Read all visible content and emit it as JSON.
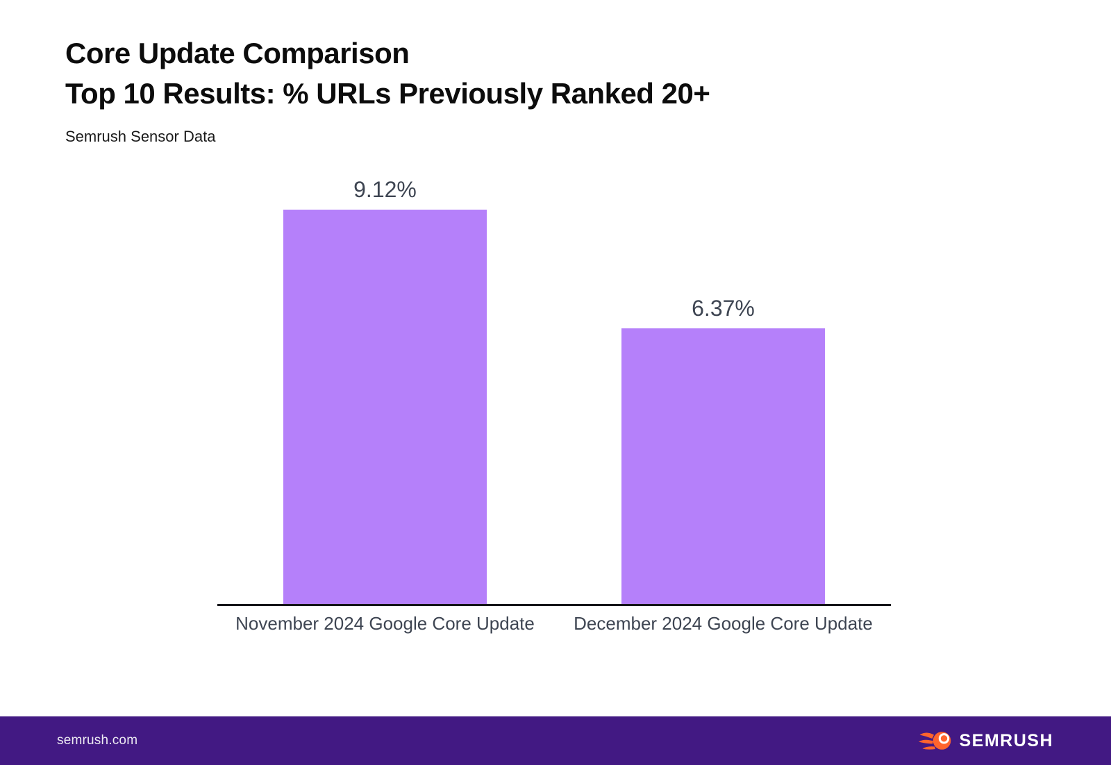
{
  "header": {
    "title_line1": "Core Update Comparison",
    "title_line2": "Top 10 Results: % URLs Previously Ranked 20+",
    "subtitle": "Semrush Sensor Data"
  },
  "chart_data": {
    "type": "bar",
    "title": "Core Update Comparison",
    "subtitle_line": "Top 10 Results: % URLs Previously Ranked 20+",
    "source_note": "Semrush Sensor Data",
    "categories": [
      "November 2024 Google Core Update",
      "December 2024 Google Core Update"
    ],
    "values": [
      9.12,
      6.37
    ],
    "value_labels": [
      "9.12%",
      "6.37%"
    ],
    "xlabel": "",
    "ylabel": "",
    "ylim": [
      0,
      10.2
    ],
    "grid": false,
    "legend": false,
    "bar_color": "#b580fa",
    "label_color": "#3e4552",
    "axis_line_color": "#16161a"
  },
  "footer": {
    "site": "semrush.com",
    "brand": "SEMRUSH",
    "background_color": "#421983",
    "logo_color": "#ff642d"
  }
}
